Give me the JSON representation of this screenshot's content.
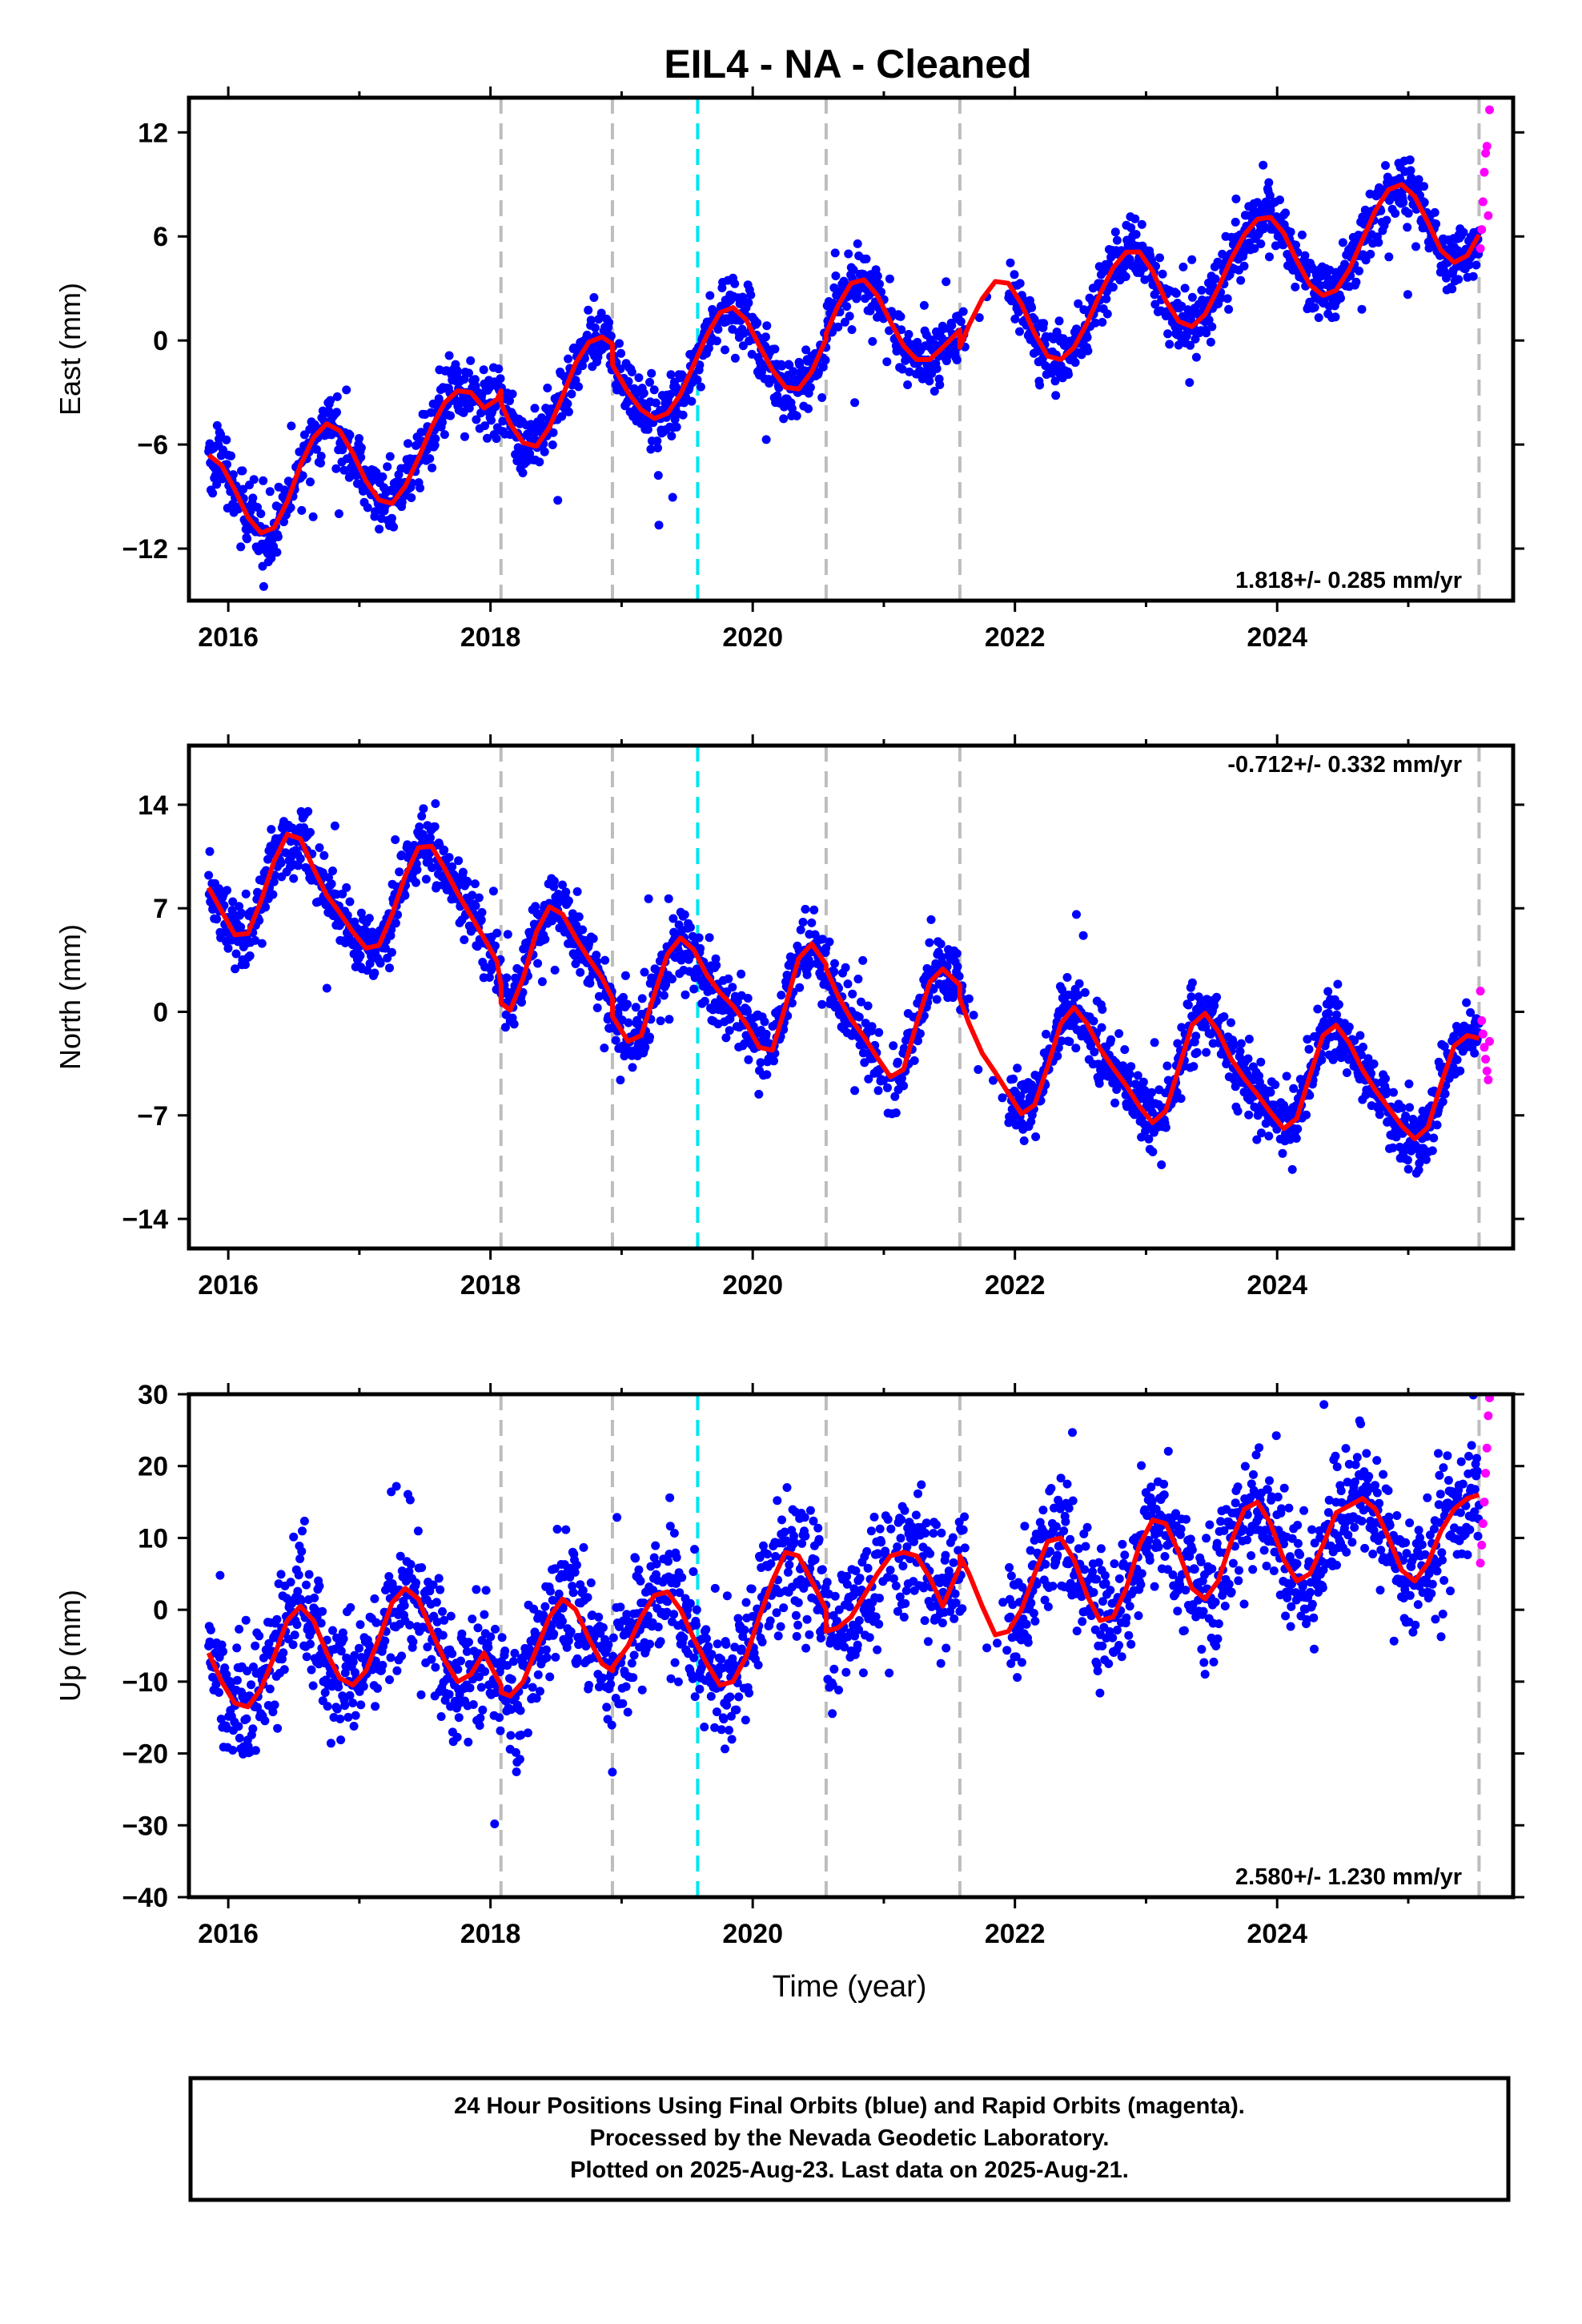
{
  "title": "EIL4  - NA - Cleaned",
  "xlabel": "Time (year)",
  "colors": {
    "final": "#0000ff",
    "rapid": "#ff00ff",
    "model": "#ff0000",
    "event": "#bdbdbd",
    "highlight": "#00e5ee"
  },
  "footer": [
    "24 Hour Positions Using Final Orbits (blue) and Rapid Orbits (magenta).",
    "Processed by the Nevada Geodetic Laboratory.",
    "Plotted on 2025-Aug-23. Last data on 2025-Aug-21."
  ],
  "chart_data": [
    {
      "type": "scatter",
      "name": "east",
      "ylabel": "East (mm)",
      "xlim": [
        2015.7,
        2025.8
      ],
      "ylim": [
        -15,
        14
      ],
      "yticks": [
        -12,
        -6,
        0,
        6,
        12
      ],
      "xticks": [
        2016,
        2018,
        2020,
        2022,
        2024
      ],
      "rate": "1.818+/- 0.285 mm/yr",
      "rate_position": "bottom-right",
      "event_lines": [
        2018.08,
        2018.93,
        2020.56,
        2021.58,
        2025.54
      ],
      "highlight_lines": [
        2019.58
      ],
      "model": {
        "x": [
          2015.85,
          2015.95,
          2016.05,
          2016.15,
          2016.25,
          2016.35,
          2016.45,
          2016.55,
          2016.65,
          2016.75,
          2016.85,
          2016.95,
          2017.05,
          2017.15,
          2017.25,
          2017.35,
          2017.45,
          2017.55,
          2017.65,
          2017.75,
          2017.85,
          2017.95,
          2018.05,
          2018.08,
          2018.08,
          2018.15,
          2018.25,
          2018.35,
          2018.45,
          2018.55,
          2018.65,
          2018.75,
          2018.85,
          2018.93,
          2018.93,
          2019.05,
          2019.15,
          2019.25,
          2019.35,
          2019.45,
          2019.55,
          2019.65,
          2019.75,
          2019.85,
          2019.95,
          2020.05,
          2020.15,
          2020.25,
          2020.35,
          2020.45,
          2020.56,
          2020.56,
          2020.65,
          2020.75,
          2020.85,
          2020.95,
          2021.05,
          2021.15,
          2021.25,
          2021.35,
          2021.45,
          2021.58,
          2021.58,
          2021.65,
          2021.75,
          2021.85,
          2021.95,
          2022.05,
          2022.15,
          2022.25,
          2022.35,
          2022.45,
          2022.55,
          2022.65,
          2022.75,
          2022.85,
          2022.95,
          2023.05,
          2023.15,
          2023.25,
          2023.35,
          2023.45,
          2023.55,
          2023.65,
          2023.75,
          2023.85,
          2023.95,
          2024.05,
          2024.15,
          2024.25,
          2024.35,
          2024.45,
          2024.55,
          2024.65,
          2024.75,
          2024.85,
          2024.95,
          2025.05,
          2025.15,
          2025.25,
          2025.35,
          2025.45,
          2025.54
        ],
        "y": [
          -6.6,
          -7.2,
          -8.6,
          -10.2,
          -11.1,
          -10.8,
          -9.3,
          -7.2,
          -5.6,
          -4.8,
          -5.2,
          -6.5,
          -8.1,
          -9.2,
          -9.4,
          -8.4,
          -6.8,
          -5.0,
          -3.6,
          -2.9,
          -3.0,
          -3.9,
          -3.4,
          -2.9,
          -3.6,
          -4.8,
          -5.9,
          -6.1,
          -5.0,
          -3.2,
          -1.3,
          -0.1,
          0.2,
          -0.2,
          -1.4,
          -3.0,
          -4.0,
          -4.5,
          -4.2,
          -3.1,
          -1.4,
          0.3,
          1.6,
          1.9,
          1.2,
          -0.3,
          -1.7,
          -2.7,
          -2.8,
          -1.8,
          0.1,
          0.4,
          2.0,
          3.3,
          3.5,
          2.6,
          1.1,
          -0.3,
          -1.1,
          -1.1,
          -0.4,
          0.6,
          -0.4,
          0.9,
          2.4,
          3.4,
          3.3,
          2.1,
          0.4,
          -0.9,
          -1.1,
          -0.4,
          1.0,
          2.7,
          4.2,
          5.1,
          5.1,
          4.0,
          2.3,
          1.1,
          0.8,
          1.5,
          3.0,
          4.7,
          6.1,
          7.0,
          7.1,
          6.2,
          4.6,
          3.2,
          2.6,
          2.9,
          4.1,
          5.8,
          7.5,
          8.7,
          9.0,
          8.3,
          6.8,
          5.2,
          4.5,
          4.9,
          6.1
        ]
      },
      "series_params": {
        "start": 2015.85,
        "end": 2025.54,
        "trend": 1.818,
        "offset": -8.0,
        "amplitude": 3.3,
        "scatter_sd": 0.9
      },
      "rapid": {
        "x": [
          2025.55,
          2025.56,
          2025.57,
          2025.58,
          2025.59,
          2025.6,
          2025.61,
          2025.62
        ],
        "y": [
          5.3,
          6.4,
          8.0,
          9.7,
          10.8,
          11.2,
          7.2,
          13.3
        ]
      }
    },
    {
      "type": "scatter",
      "name": "north",
      "ylabel": "North (mm)",
      "xlim": [
        2015.7,
        2025.8
      ],
      "ylim": [
        -16,
        18
      ],
      "yticks": [
        -14,
        -7,
        0,
        7,
        14
      ],
      "xticks": [
        2016,
        2018,
        2020,
        2022,
        2024
      ],
      "rate": "-0.712+/- 0.332 mm/yr",
      "rate_position": "top-right",
      "event_lines": [
        2018.08,
        2018.93,
        2020.56,
        2021.58,
        2025.54
      ],
      "highlight_lines": [
        2019.58
      ],
      "model": {
        "x": [
          2015.85,
          2015.95,
          2016.05,
          2016.15,
          2016.25,
          2016.35,
          2016.45,
          2016.55,
          2016.65,
          2016.75,
          2016.85,
          2016.95,
          2017.05,
          2017.15,
          2017.25,
          2017.35,
          2017.45,
          2017.55,
          2017.65,
          2017.75,
          2017.85,
          2017.95,
          2018.05,
          2018.08,
          2018.08,
          2018.15,
          2018.25,
          2018.35,
          2018.45,
          2018.55,
          2018.65,
          2018.75,
          2018.85,
          2018.93,
          2018.93,
          2019.05,
          2019.15,
          2019.25,
          2019.35,
          2019.45,
          2019.55,
          2019.65,
          2019.75,
          2019.85,
          2019.95,
          2020.05,
          2020.15,
          2020.25,
          2020.35,
          2020.45,
          2020.56,
          2020.56,
          2020.65,
          2020.75,
          2020.85,
          2020.95,
          2021.05,
          2021.15,
          2021.25,
          2021.35,
          2021.45,
          2021.58,
          2021.58,
          2021.65,
          2021.75,
          2021.85,
          2021.95,
          2022.05,
          2022.15,
          2022.25,
          2022.35,
          2022.45,
          2022.55,
          2022.65,
          2022.75,
          2022.85,
          2022.95,
          2023.05,
          2023.15,
          2023.25,
          2023.35,
          2023.45,
          2023.55,
          2023.65,
          2023.75,
          2023.85,
          2023.95,
          2024.05,
          2024.15,
          2024.25,
          2024.35,
          2024.45,
          2024.55,
          2024.65,
          2024.75,
          2024.85,
          2024.95,
          2025.05,
          2025.15,
          2025.25,
          2025.35,
          2025.45,
          2025.54
        ],
        "y": [
          8.4,
          6.8,
          5.2,
          5.3,
          7.5,
          10.2,
          12.0,
          11.7,
          9.7,
          7.9,
          6.7,
          5.4,
          4.3,
          4.5,
          6.6,
          9.2,
          11.1,
          11.2,
          9.7,
          8.0,
          6.5,
          5.0,
          3.4,
          1.8,
          0.6,
          0.1,
          2.3,
          5.4,
          7.1,
          6.6,
          5.0,
          3.6,
          2.3,
          0.9,
          -0.3,
          -2.0,
          -1.6,
          1.2,
          3.9,
          5.0,
          4.2,
          2.5,
          1.3,
          0.4,
          -0.8,
          -2.4,
          -2.6,
          0.4,
          3.6,
          4.6,
          3.2,
          2.9,
          1.1,
          -0.5,
          -1.7,
          -3.1,
          -4.4,
          -3.9,
          -0.8,
          2.0,
          2.9,
          1.8,
          0.9,
          -0.8,
          -2.8,
          -4.1,
          -5.5,
          -6.9,
          -6.3,
          -3.7,
          -0.8,
          0.3,
          -0.8,
          -2.5,
          -3.8,
          -5.0,
          -6.4,
          -7.5,
          -6.7,
          -3.8,
          -0.9,
          -0.1,
          -1.3,
          -3.2,
          -4.5,
          -5.6,
          -6.8,
          -7.9,
          -7.2,
          -4.3,
          -1.6,
          -0.9,
          -2.1,
          -3.9,
          -5.3,
          -6.5,
          -7.7,
          -8.6,
          -7.8,
          -4.9,
          -2.3,
          -1.6,
          -1.8
        ]
      },
      "series_params": {
        "start": 2015.85,
        "end": 2025.54,
        "trend": -0.712,
        "offset": 8.0,
        "amplitude": 3.6,
        "scatter_sd": 1.1
      },
      "rapid": {
        "x": [
          2025.55,
          2025.56,
          2025.57,
          2025.58,
          2025.59,
          2025.6,
          2025.61,
          2025.62
        ],
        "y": [
          1.4,
          -0.6,
          -1.5,
          -2.4,
          -3.2,
          -4.0,
          -4.6,
          -2.0
        ]
      }
    },
    {
      "type": "scatter",
      "name": "up",
      "ylabel": "Up (mm)",
      "xlim": [
        2015.7,
        2025.8
      ],
      "ylim": [
        -40,
        30
      ],
      "yticks": [
        -40,
        -30,
        -20,
        -10,
        0,
        10,
        20,
        30
      ],
      "xticks": [
        2016,
        2018,
        2020,
        2022,
        2024
      ],
      "rate": "2.580+/- 1.230 mm/yr",
      "rate_position": "bottom-right",
      "event_lines": [
        2018.08,
        2018.93,
        2020.56,
        2021.58,
        2025.54
      ],
      "highlight_lines": [
        2019.58
      ],
      "model": {
        "x": [
          2015.85,
          2015.95,
          2016.05,
          2016.15,
          2016.25,
          2016.35,
          2016.45,
          2016.55,
          2016.65,
          2016.75,
          2016.85,
          2016.95,
          2017.05,
          2017.15,
          2017.25,
          2017.35,
          2017.45,
          2017.55,
          2017.65,
          2017.75,
          2017.85,
          2017.95,
          2018.05,
          2018.08,
          2018.08,
          2018.15,
          2018.25,
          2018.35,
          2018.45,
          2018.55,
          2018.65,
          2018.75,
          2018.85,
          2018.93,
          2018.93,
          2019.05,
          2019.15,
          2019.25,
          2019.35,
          2019.45,
          2019.55,
          2019.65,
          2019.75,
          2019.85,
          2019.95,
          2020.05,
          2020.15,
          2020.25,
          2020.35,
          2020.45,
          2020.56,
          2020.56,
          2020.65,
          2020.75,
          2020.85,
          2020.95,
          2021.05,
          2021.15,
          2021.25,
          2021.35,
          2021.45,
          2021.58,
          2021.58,
          2021.65,
          2021.75,
          2021.85,
          2021.95,
          2022.05,
          2022.15,
          2022.25,
          2022.35,
          2022.45,
          2022.55,
          2022.65,
          2022.75,
          2022.85,
          2022.95,
          2023.05,
          2023.15,
          2023.25,
          2023.35,
          2023.45,
          2023.55,
          2023.65,
          2023.75,
          2023.85,
          2023.95,
          2024.05,
          2024.15,
          2024.25,
          2024.35,
          2024.45,
          2024.55,
          2024.65,
          2024.75,
          2024.85,
          2024.95,
          2025.05,
          2025.15,
          2025.25,
          2025.35,
          2025.45,
          2025.54
        ],
        "y": [
          -6.0,
          -10.0,
          -13.0,
          -13.5,
          -11.0,
          -6.5,
          -1.5,
          0.5,
          -1.5,
          -6.0,
          -9.5,
          -10.5,
          -8.5,
          -4.0,
          1.0,
          3.0,
          1.5,
          -3.0,
          -7.0,
          -10.0,
          -9.0,
          -6.0,
          -9.5,
          -10.5,
          -11.5,
          -12.0,
          -10.0,
          -5.5,
          -1.0,
          1.5,
          0.0,
          -4.0,
          -7.5,
          -8.5,
          -8.0,
          -5.0,
          -1.0,
          2.0,
          2.5,
          0.0,
          -4.0,
          -7.5,
          -10.5,
          -10.0,
          -6.5,
          -1.0,
          4.0,
          8.0,
          7.5,
          4.0,
          0.0,
          -3.0,
          -2.5,
          -1.0,
          2.0,
          5.0,
          7.5,
          8.0,
          7.5,
          4.5,
          0.5,
          6.0,
          7.5,
          5.0,
          0.5,
          -3.5,
          -3.0,
          0.0,
          5.0,
          9.5,
          10.0,
          7.0,
          2.0,
          -1.5,
          -1.0,
          3.0,
          9.0,
          12.5,
          12.0,
          8.0,
          3.0,
          1.5,
          4.0,
          9.5,
          14.0,
          15.0,
          12.0,
          7.0,
          4.0,
          5.0,
          9.0,
          13.5,
          14.5,
          15.5,
          14.0,
          10.0,
          5.5,
          4.0,
          6.5,
          11.0,
          14.0,
          15.5,
          16.0
        ]
      },
      "series_params": {
        "start": 2015.85,
        "end": 2025.54,
        "trend": 2.58,
        "offset": -8.0,
        "amplitude": 6.5,
        "scatter_sd": 4.2
      },
      "rapid": {
        "x": [
          2025.55,
          2025.56,
          2025.57,
          2025.58,
          2025.59,
          2025.6,
          2025.61,
          2025.62
        ],
        "y": [
          6.5,
          9.0,
          12.0,
          15.0,
          19.0,
          22.5,
          27.0,
          29.5
        ]
      }
    }
  ]
}
